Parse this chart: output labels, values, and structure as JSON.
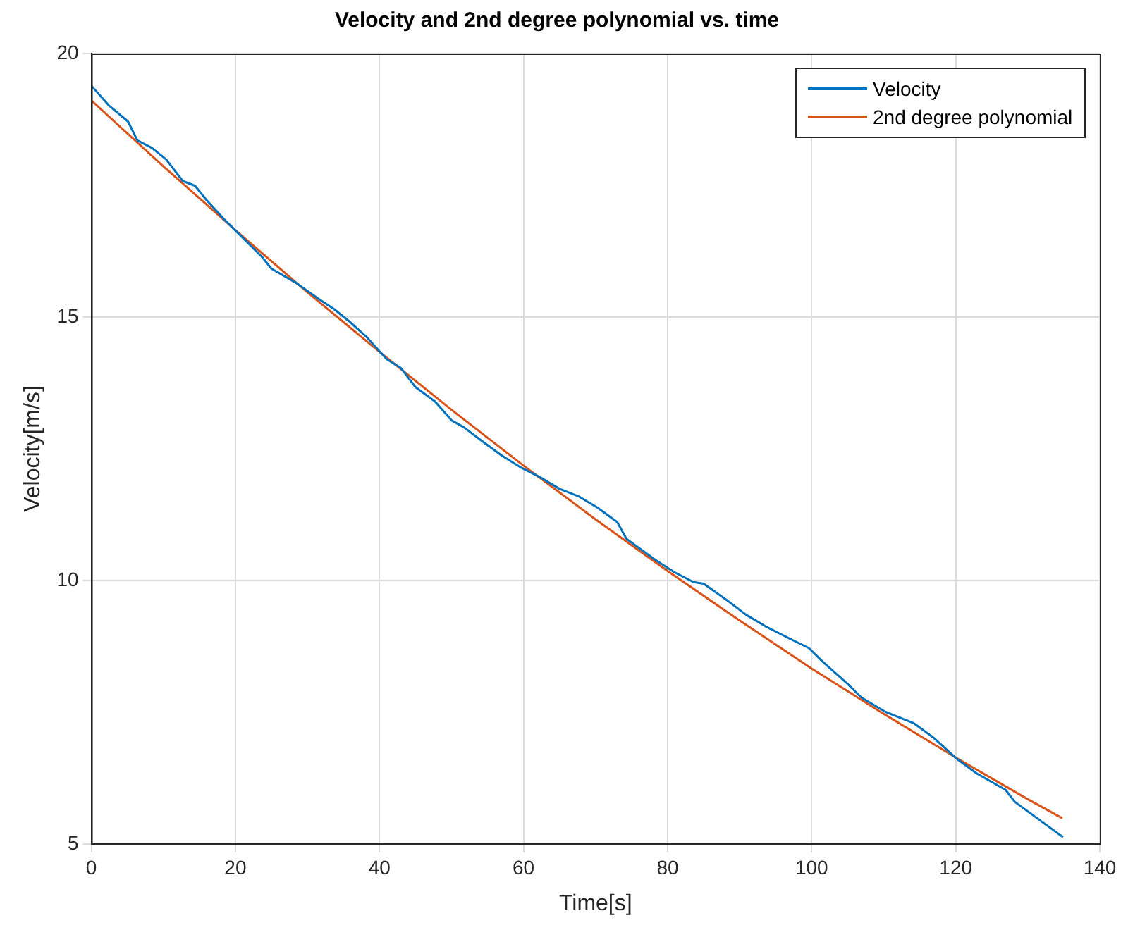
{
  "chart_data": {
    "type": "line",
    "title": "Velocity and 2nd degree polynomial vs. time",
    "xlabel": "Time[s]",
    "ylabel": "Velocity[m/s]",
    "xlim": [
      0,
      140
    ],
    "xticks": [
      0,
      20,
      40,
      60,
      80,
      100,
      120,
      140
    ],
    "ylim": [
      5,
      20
    ],
    "yticks": [
      5,
      10,
      15,
      20
    ],
    "grid": true,
    "legend": "top right",
    "marker": "none",
    "line_style": "solid",
    "series": [
      {
        "name": "Velocity",
        "color": "#0072bd",
        "x": [
          0.07,
          2.4,
          5.1,
          6.4,
          8.4,
          10.4,
          12.7,
          14.4,
          16.0,
          18.4,
          20.4,
          23.7,
          25.0,
          28.4,
          31.7,
          33.7,
          35.7,
          38.3,
          41.0,
          43.0,
          45.0,
          47.7,
          50.0,
          51.7,
          54.3,
          57.0,
          59.7,
          62.3,
          65.0,
          67.6,
          70.3,
          73.0,
          74.3,
          78.3,
          80.9,
          83.6,
          85.0,
          88.3,
          90.9,
          93.6,
          96.9,
          99.6,
          101.6,
          104.9,
          106.9,
          110.2,
          114.2,
          116.9,
          120.2,
          122.9,
          126.9,
          128.2,
          130.9,
          134.9
        ],
        "values": [
          19.38,
          19.02,
          18.71,
          18.35,
          18.21,
          17.99,
          17.58,
          17.49,
          17.22,
          16.86,
          16.59,
          16.14,
          15.92,
          15.65,
          15.33,
          15.15,
          14.93,
          14.61,
          14.2,
          14.03,
          13.67,
          13.4,
          13.04,
          12.91,
          12.64,
          12.37,
          12.14,
          11.96,
          11.74,
          11.6,
          11.38,
          11.11,
          10.79,
          10.39,
          10.16,
          9.97,
          9.94,
          9.62,
          9.35,
          9.13,
          8.9,
          8.72,
          8.45,
          8.05,
          7.78,
          7.51,
          7.29,
          7.02,
          6.61,
          6.34,
          6.03,
          5.8,
          5.53,
          5.13
        ]
      },
      {
        "name": "2nd degree polynomial",
        "color": "#d95319",
        "x": [
          0,
          10,
          20,
          30,
          40,
          50,
          60,
          70,
          80,
          90,
          100,
          110,
          120,
          130,
          134.8
        ],
        "values": [
          19.11,
          17.86,
          16.65,
          15.47,
          14.34,
          13.24,
          12.18,
          11.16,
          10.18,
          9.24,
          8.33,
          7.47,
          6.64,
          5.85,
          5.49
        ]
      }
    ]
  }
}
